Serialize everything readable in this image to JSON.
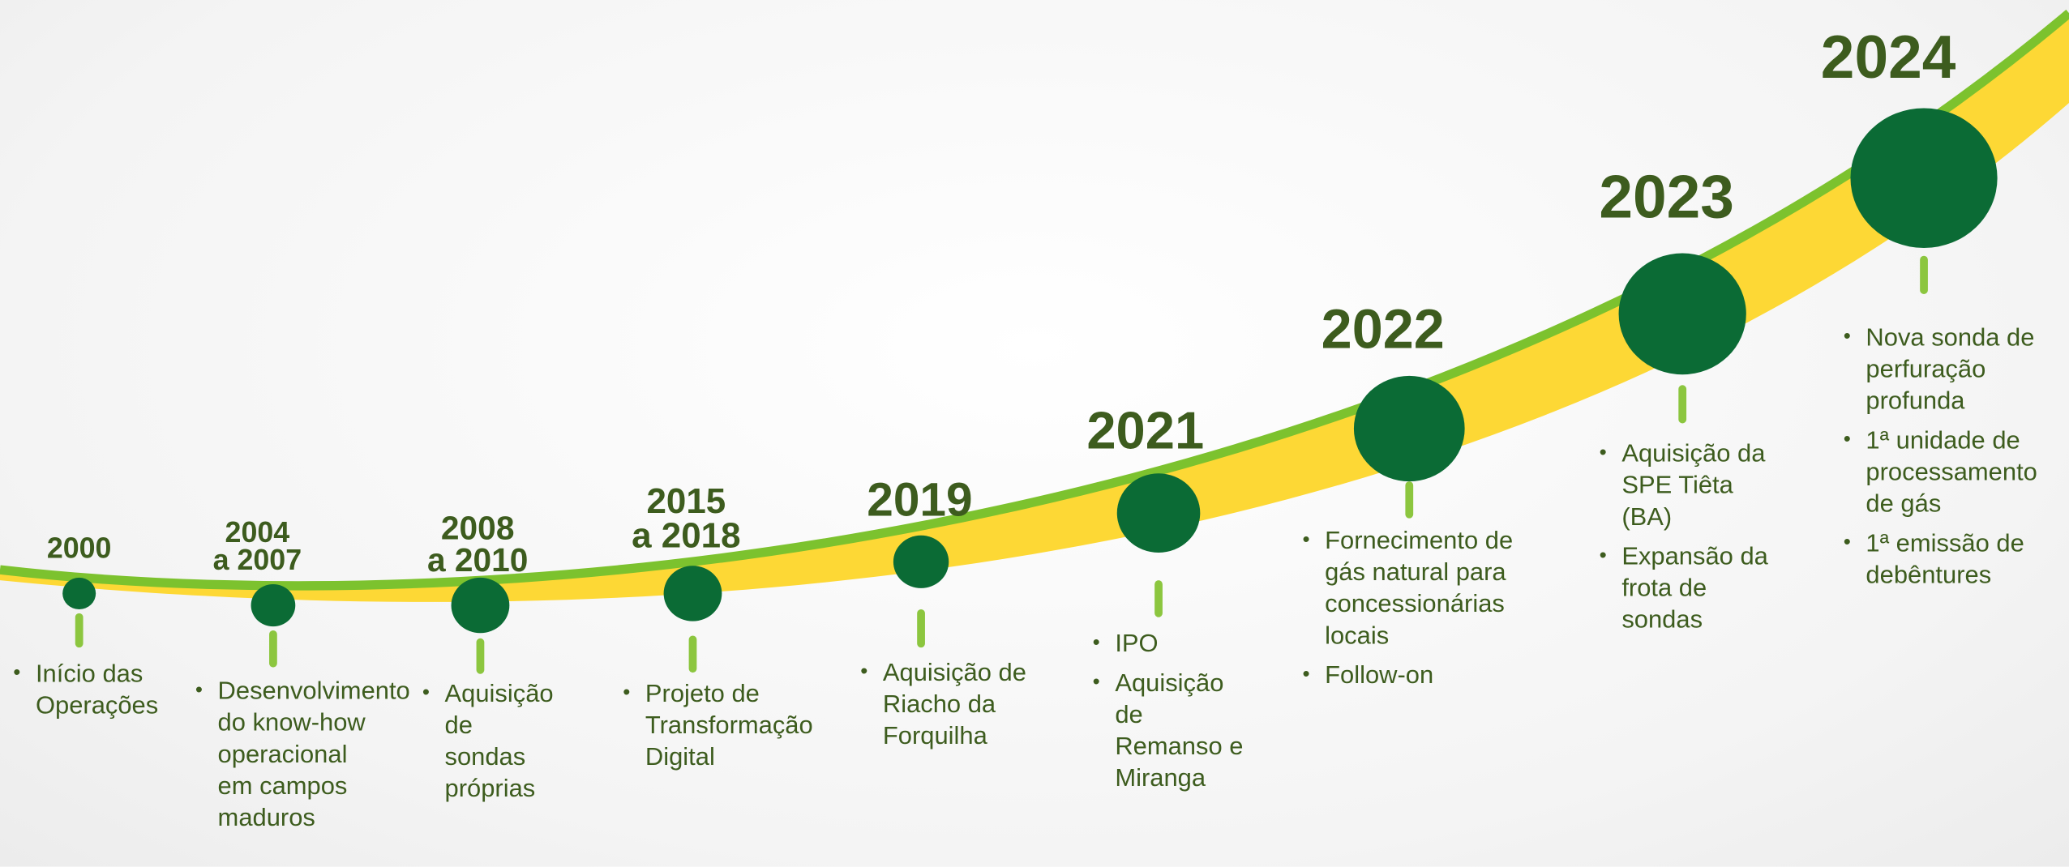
{
  "milestones": [
    {
      "year": [
        "2000"
      ],
      "bullets": [
        "Início das Operações"
      ]
    },
    {
      "year": [
        "2004",
        "a 2007"
      ],
      "bullets": [
        "Desenvolvimento do know-how operacional em campos maduros"
      ]
    },
    {
      "year": [
        "2008",
        "a 2010"
      ],
      "bullets": [
        "Aquisição de sondas próprias"
      ]
    },
    {
      "year": [
        "2015",
        "a 2018"
      ],
      "bullets": [
        "Projeto de Transformação Digital"
      ]
    },
    {
      "year": [
        "2019"
      ],
      "bullets": [
        "Aquisição de Riacho da Forquilha"
      ]
    },
    {
      "year": [
        "2021"
      ],
      "bullets": [
        "IPO",
        "Aquisição de Remanso e Miranga"
      ]
    },
    {
      "year": [
        "2022"
      ],
      "bullets": [
        "Fornecimento de gás natural para concessionárias locais",
        "Follow-on"
      ]
    },
    {
      "year": [
        "2023"
      ],
      "bullets": [
        "Aquisição da SPE Tiêta (BA)",
        "Expansão da frota de sondas"
      ]
    },
    {
      "year": [
        "2024"
      ],
      "bullets": [
        "Nova sonda de perfuração profunda",
        "1ª unidade de processamento de gás",
        "1ª emissão de debêntures"
      ]
    }
  ]
}
